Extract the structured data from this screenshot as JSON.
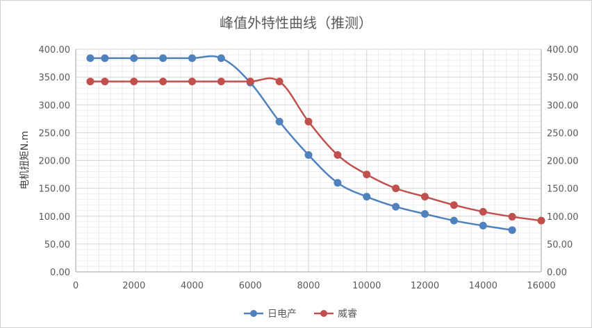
{
  "chart_data": {
    "type": "line",
    "title": "峰值外特性曲线（推测）",
    "xlabel": "",
    "ylabel": "电机扭矩N.m",
    "xlim": [
      0,
      16000
    ],
    "ylim": [
      0,
      400
    ],
    "x_ticks": [
      "0",
      "2000",
      "4000",
      "6000",
      "8000",
      "10000",
      "12000",
      "14000",
      "16000"
    ],
    "y_ticks": [
      "0.00",
      "50.00",
      "100.00",
      "150.00",
      "200.00",
      "250.00",
      "300.00",
      "350.00",
      "400.00"
    ],
    "y2_ticks": [
      "0.00",
      "50.00",
      "100.00",
      "150.00",
      "200.00",
      "250.00",
      "300.00",
      "350.00",
      "400.00"
    ],
    "grid": true,
    "legend_position": "bottom",
    "series": [
      {
        "name": "日电产",
        "color": "#4f81bd",
        "x": [
          500,
          1000,
          2000,
          3000,
          4000,
          5000,
          6000,
          7000,
          8000,
          9000,
          10000,
          11000,
          12000,
          13000,
          14000,
          15000
        ],
        "y": [
          384,
          384,
          384,
          384,
          384,
          384,
          340,
          270,
          210,
          160,
          135,
          117,
          104,
          92,
          83,
          75
        ]
      },
      {
        "name": "威睿",
        "color": "#c0504d",
        "x": [
          500,
          1000,
          2000,
          3000,
          4000,
          5000,
          6000,
          7000,
          8000,
          9000,
          10000,
          11000,
          12000,
          13000,
          14000,
          15000,
          16000
        ],
        "y": [
          342,
          342,
          342,
          342,
          342,
          342,
          342,
          342,
          270,
          210,
          175,
          150,
          135,
          120,
          108,
          99,
          92
        ]
      }
    ]
  }
}
